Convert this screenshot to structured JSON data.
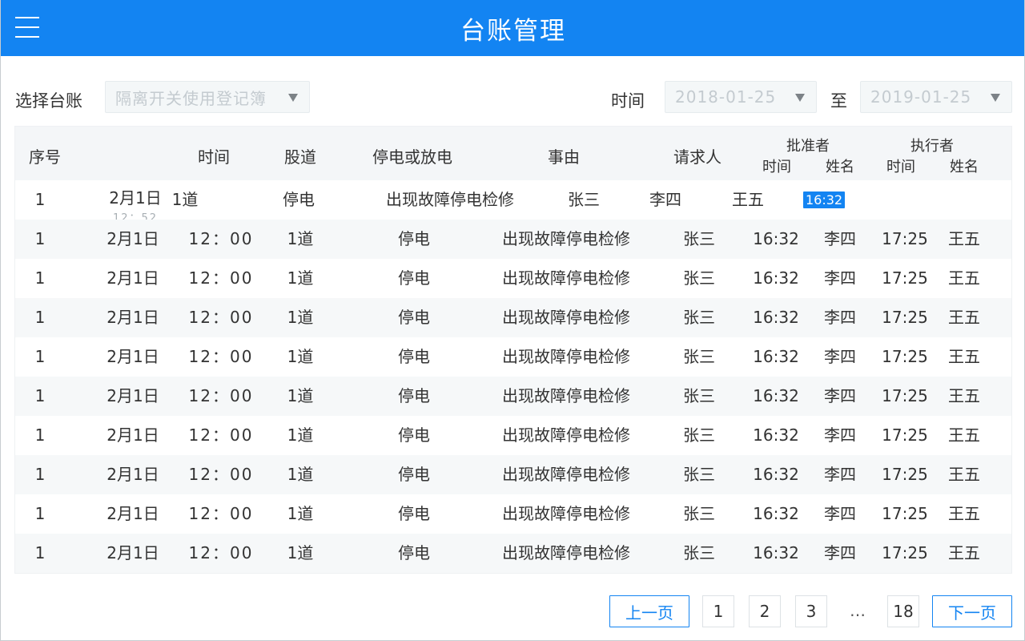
{
  "header": {
    "title": "台账管理",
    "menu_icon": "menu-icon"
  },
  "filters": {
    "ledger_label": "选择台账",
    "ledger_value": "隔离开关使用登记簿",
    "time_label": "时间",
    "start_date": "2018-01-25",
    "range_sep": "至",
    "end_date": "2019-01-25"
  },
  "table": {
    "headers": {
      "index": "序号",
      "time": "时间",
      "track": "股道",
      "action": "停电或放电",
      "reason": "事由",
      "requester": "请求人",
      "approver": "批准者",
      "approver_time": "时间",
      "approver_name": "姓名",
      "executor": "执行者",
      "executor_time": "时间",
      "executor_name": "姓名"
    },
    "editing_row": {
      "index": "1",
      "date": "2月1日",
      "clock": "12：52",
      "track": "1道",
      "action": "停电",
      "reason": "出现故障停电检修",
      "requester": "张三",
      "approver": "李四",
      "executor": "王五",
      "selected_time": "16:32"
    },
    "rows": [
      {
        "index": "1",
        "date": "2月1日",
        "clock": "12：00",
        "track": "1道",
        "action": "停电",
        "reason": "出现故障停电检修",
        "requester": "张三",
        "approve_time": "16:32",
        "approve_name": "李四",
        "exec_time": "17:25",
        "exec_name": "王五"
      },
      {
        "index": "1",
        "date": "2月1日",
        "clock": "12：00",
        "track": "1道",
        "action": "停电",
        "reason": "出现故障停电检修",
        "requester": "张三",
        "approve_time": "16:32",
        "approve_name": "李四",
        "exec_time": "17:25",
        "exec_name": "王五"
      },
      {
        "index": "1",
        "date": "2月1日",
        "clock": "12：00",
        "track": "1道",
        "action": "停电",
        "reason": "出现故障停电检修",
        "requester": "张三",
        "approve_time": "16:32",
        "approve_name": "李四",
        "exec_time": "17:25",
        "exec_name": "王五"
      },
      {
        "index": "1",
        "date": "2月1日",
        "clock": "12：00",
        "track": "1道",
        "action": "停电",
        "reason": "出现故障停电检修",
        "requester": "张三",
        "approve_time": "16:32",
        "approve_name": "李四",
        "exec_time": "17:25",
        "exec_name": "王五"
      },
      {
        "index": "1",
        "date": "2月1日",
        "clock": "12：00",
        "track": "1道",
        "action": "停电",
        "reason": "出现故障停电检修",
        "requester": "张三",
        "approve_time": "16:32",
        "approve_name": "李四",
        "exec_time": "17:25",
        "exec_name": "王五"
      },
      {
        "index": "1",
        "date": "2月1日",
        "clock": "12：00",
        "track": "1道",
        "action": "停电",
        "reason": "出现故障停电检修",
        "requester": "张三",
        "approve_time": "16:32",
        "approve_name": "李四",
        "exec_time": "17:25",
        "exec_name": "王五"
      },
      {
        "index": "1",
        "date": "2月1日",
        "clock": "12：00",
        "track": "1道",
        "action": "停电",
        "reason": "出现故障停电检修",
        "requester": "张三",
        "approve_time": "16:32",
        "approve_name": "李四",
        "exec_time": "17:25",
        "exec_name": "王五"
      },
      {
        "index": "1",
        "date": "2月1日",
        "clock": "12：00",
        "track": "1道",
        "action": "停电",
        "reason": "出现故障停电检修",
        "requester": "张三",
        "approve_time": "16:32",
        "approve_name": "李四",
        "exec_time": "17:25",
        "exec_name": "王五"
      },
      {
        "index": "1",
        "date": "2月1日",
        "clock": "12：00",
        "track": "1道",
        "action": "停电",
        "reason": "出现故障停电检修",
        "requester": "张三",
        "approve_time": "16:32",
        "approve_name": "李四",
        "exec_time": "17:25",
        "exec_name": "王五"
      }
    ]
  },
  "pagination": {
    "prev": "上一页",
    "next": "下一页",
    "pages": [
      "1",
      "2",
      "3"
    ],
    "ellipsis": "…",
    "last": "18"
  },
  "colors": {
    "accent": "#1384f2",
    "row_alt": "#f6f8f9",
    "header_bg": "#f4f6f8"
  }
}
